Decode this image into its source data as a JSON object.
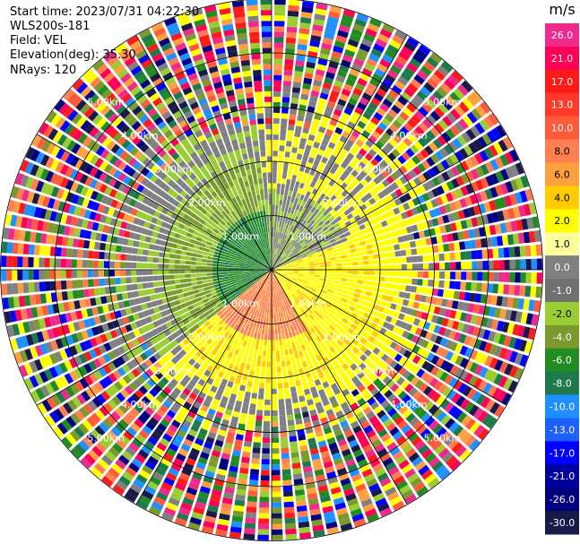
{
  "chart_data": {
    "type": "ppi-scan",
    "title_lines": [
      {
        "label": "Start time:",
        "value": "2023/07/31 04:22:30"
      },
      {
        "label": "",
        "value": "WLS200s-181"
      },
      {
        "label": "Field:",
        "value": "VEL"
      },
      {
        "label": "Elevation(deg):",
        "value": "35.30"
      },
      {
        "label": "NRays:",
        "value": "120"
      }
    ],
    "field": "VEL",
    "nrays": 120,
    "ring_labels": [
      "1.00km",
      "2.00km",
      "3.00km",
      "4.00km",
      "5.00km"
    ],
    "ring_radii_km": [
      1,
      2,
      3,
      4,
      5
    ],
    "colorbar": {
      "unit": "m/s",
      "ticks": [
        "26.0",
        "21.0",
        "17.0",
        "13.0",
        "10.0",
        "8.0",
        "6.0",
        "4.0",
        "2.0",
        "1.0",
        "0.0",
        "-1.0",
        "-2.0",
        "-4.0",
        "-6.0",
        "-8.0",
        "-10.0",
        "-13.0",
        "-17.0",
        "-21.0",
        "-26.0",
        "-30.0"
      ],
      "colors": [
        "#ee2a8d",
        "#ff0057",
        "#ff1a1a",
        "#ff3a2a",
        "#ff5a3a",
        "#ff7f50",
        "#ffa040",
        "#ffcc00",
        "#ffff00",
        "#ffff9c",
        "#808080",
        "#707070",
        "#9acd32",
        "#7a9a2e",
        "#228b22",
        "#1e7a4a",
        "#1e90ff",
        "#1e60ff",
        "#0000ff",
        "#0000a0",
        "#000080",
        "#1a1a4a"
      ]
    }
  }
}
